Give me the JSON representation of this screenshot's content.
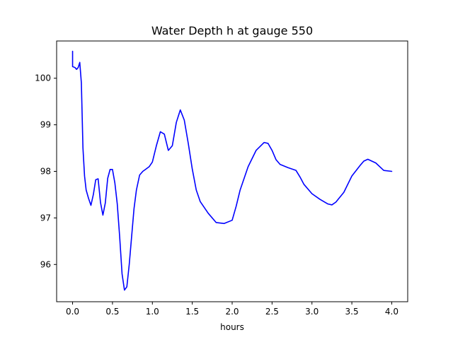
{
  "chart_data": {
    "type": "line",
    "title": "Water Depth h at gauge 550",
    "xlabel": "hours",
    "ylabel": "",
    "xlim": [
      -0.2,
      4.2
    ],
    "ylim": [
      95.2,
      100.8
    ],
    "xticks": [
      0.0,
      0.5,
      1.0,
      1.5,
      2.0,
      2.5,
      3.0,
      3.5,
      4.0
    ],
    "xtick_labels": [
      "0.0",
      "0.5",
      "1.0",
      "1.5",
      "2.0",
      "2.5",
      "3.0",
      "3.5",
      "4.0"
    ],
    "yticks": [
      96,
      97,
      98,
      99,
      100
    ],
    "ytick_labels": [
      "96",
      "97",
      "98",
      "99",
      "100"
    ],
    "grid": false,
    "series": [
      {
        "color": "#0000ff",
        "x": [
          0.0,
          0.0,
          0.0,
          0.03,
          0.05,
          0.07,
          0.09,
          0.11,
          0.13,
          0.15,
          0.17,
          0.2,
          0.23,
          0.26,
          0.29,
          0.32,
          0.35,
          0.38,
          0.41,
          0.44,
          0.47,
          0.5,
          0.53,
          0.56,
          0.59,
          0.62,
          0.65,
          0.68,
          0.71,
          0.74,
          0.77,
          0.8,
          0.84,
          0.88,
          0.92,
          0.96,
          1.0,
          1.05,
          1.1,
          1.15,
          1.2,
          1.25,
          1.3,
          1.35,
          1.4,
          1.45,
          1.5,
          1.55,
          1.6,
          1.7,
          1.8,
          1.9,
          2.0,
          2.05,
          2.1,
          2.2,
          2.3,
          2.4,
          2.45,
          2.5,
          2.55,
          2.6,
          2.7,
          2.8,
          2.85,
          2.9,
          3.0,
          3.1,
          3.2,
          3.25,
          3.3,
          3.4,
          3.5,
          3.6,
          3.65,
          3.7,
          3.8,
          3.9,
          4.0
        ],
        "y": [
          100.58,
          100.4,
          100.25,
          100.23,
          100.19,
          100.23,
          100.34,
          99.9,
          98.5,
          97.9,
          97.6,
          97.42,
          97.27,
          97.5,
          97.82,
          97.84,
          97.33,
          97.06,
          97.32,
          97.85,
          98.04,
          98.04,
          97.75,
          97.3,
          96.6,
          95.8,
          95.45,
          95.52,
          96.0,
          96.6,
          97.2,
          97.6,
          97.92,
          98.0,
          98.05,
          98.1,
          98.2,
          98.55,
          98.85,
          98.8,
          98.45,
          98.55,
          99.05,
          99.32,
          99.1,
          98.6,
          98.05,
          97.6,
          97.35,
          97.1,
          96.9,
          96.88,
          96.95,
          97.25,
          97.6,
          98.1,
          98.45,
          98.62,
          98.6,
          98.45,
          98.25,
          98.15,
          98.08,
          98.02,
          97.88,
          97.72,
          97.52,
          97.4,
          97.3,
          97.28,
          97.34,
          97.55,
          97.9,
          98.12,
          98.22,
          98.26,
          98.18,
          98.02,
          98.0
        ]
      }
    ]
  }
}
